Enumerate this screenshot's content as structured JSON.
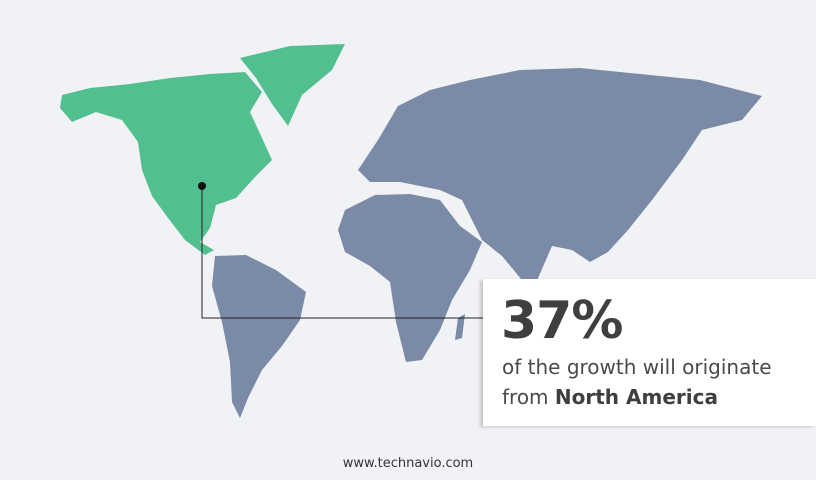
{
  "callout": {
    "percent": "37%",
    "line1": "of the growth will originate",
    "line2_prefix": "from ",
    "region": "North America"
  },
  "footer": {
    "website": "www.technavio.com"
  },
  "colors": {
    "highlight_region": "#52c08e",
    "other_regions": "#7b8aa6",
    "background": "#f1f2f5"
  }
}
